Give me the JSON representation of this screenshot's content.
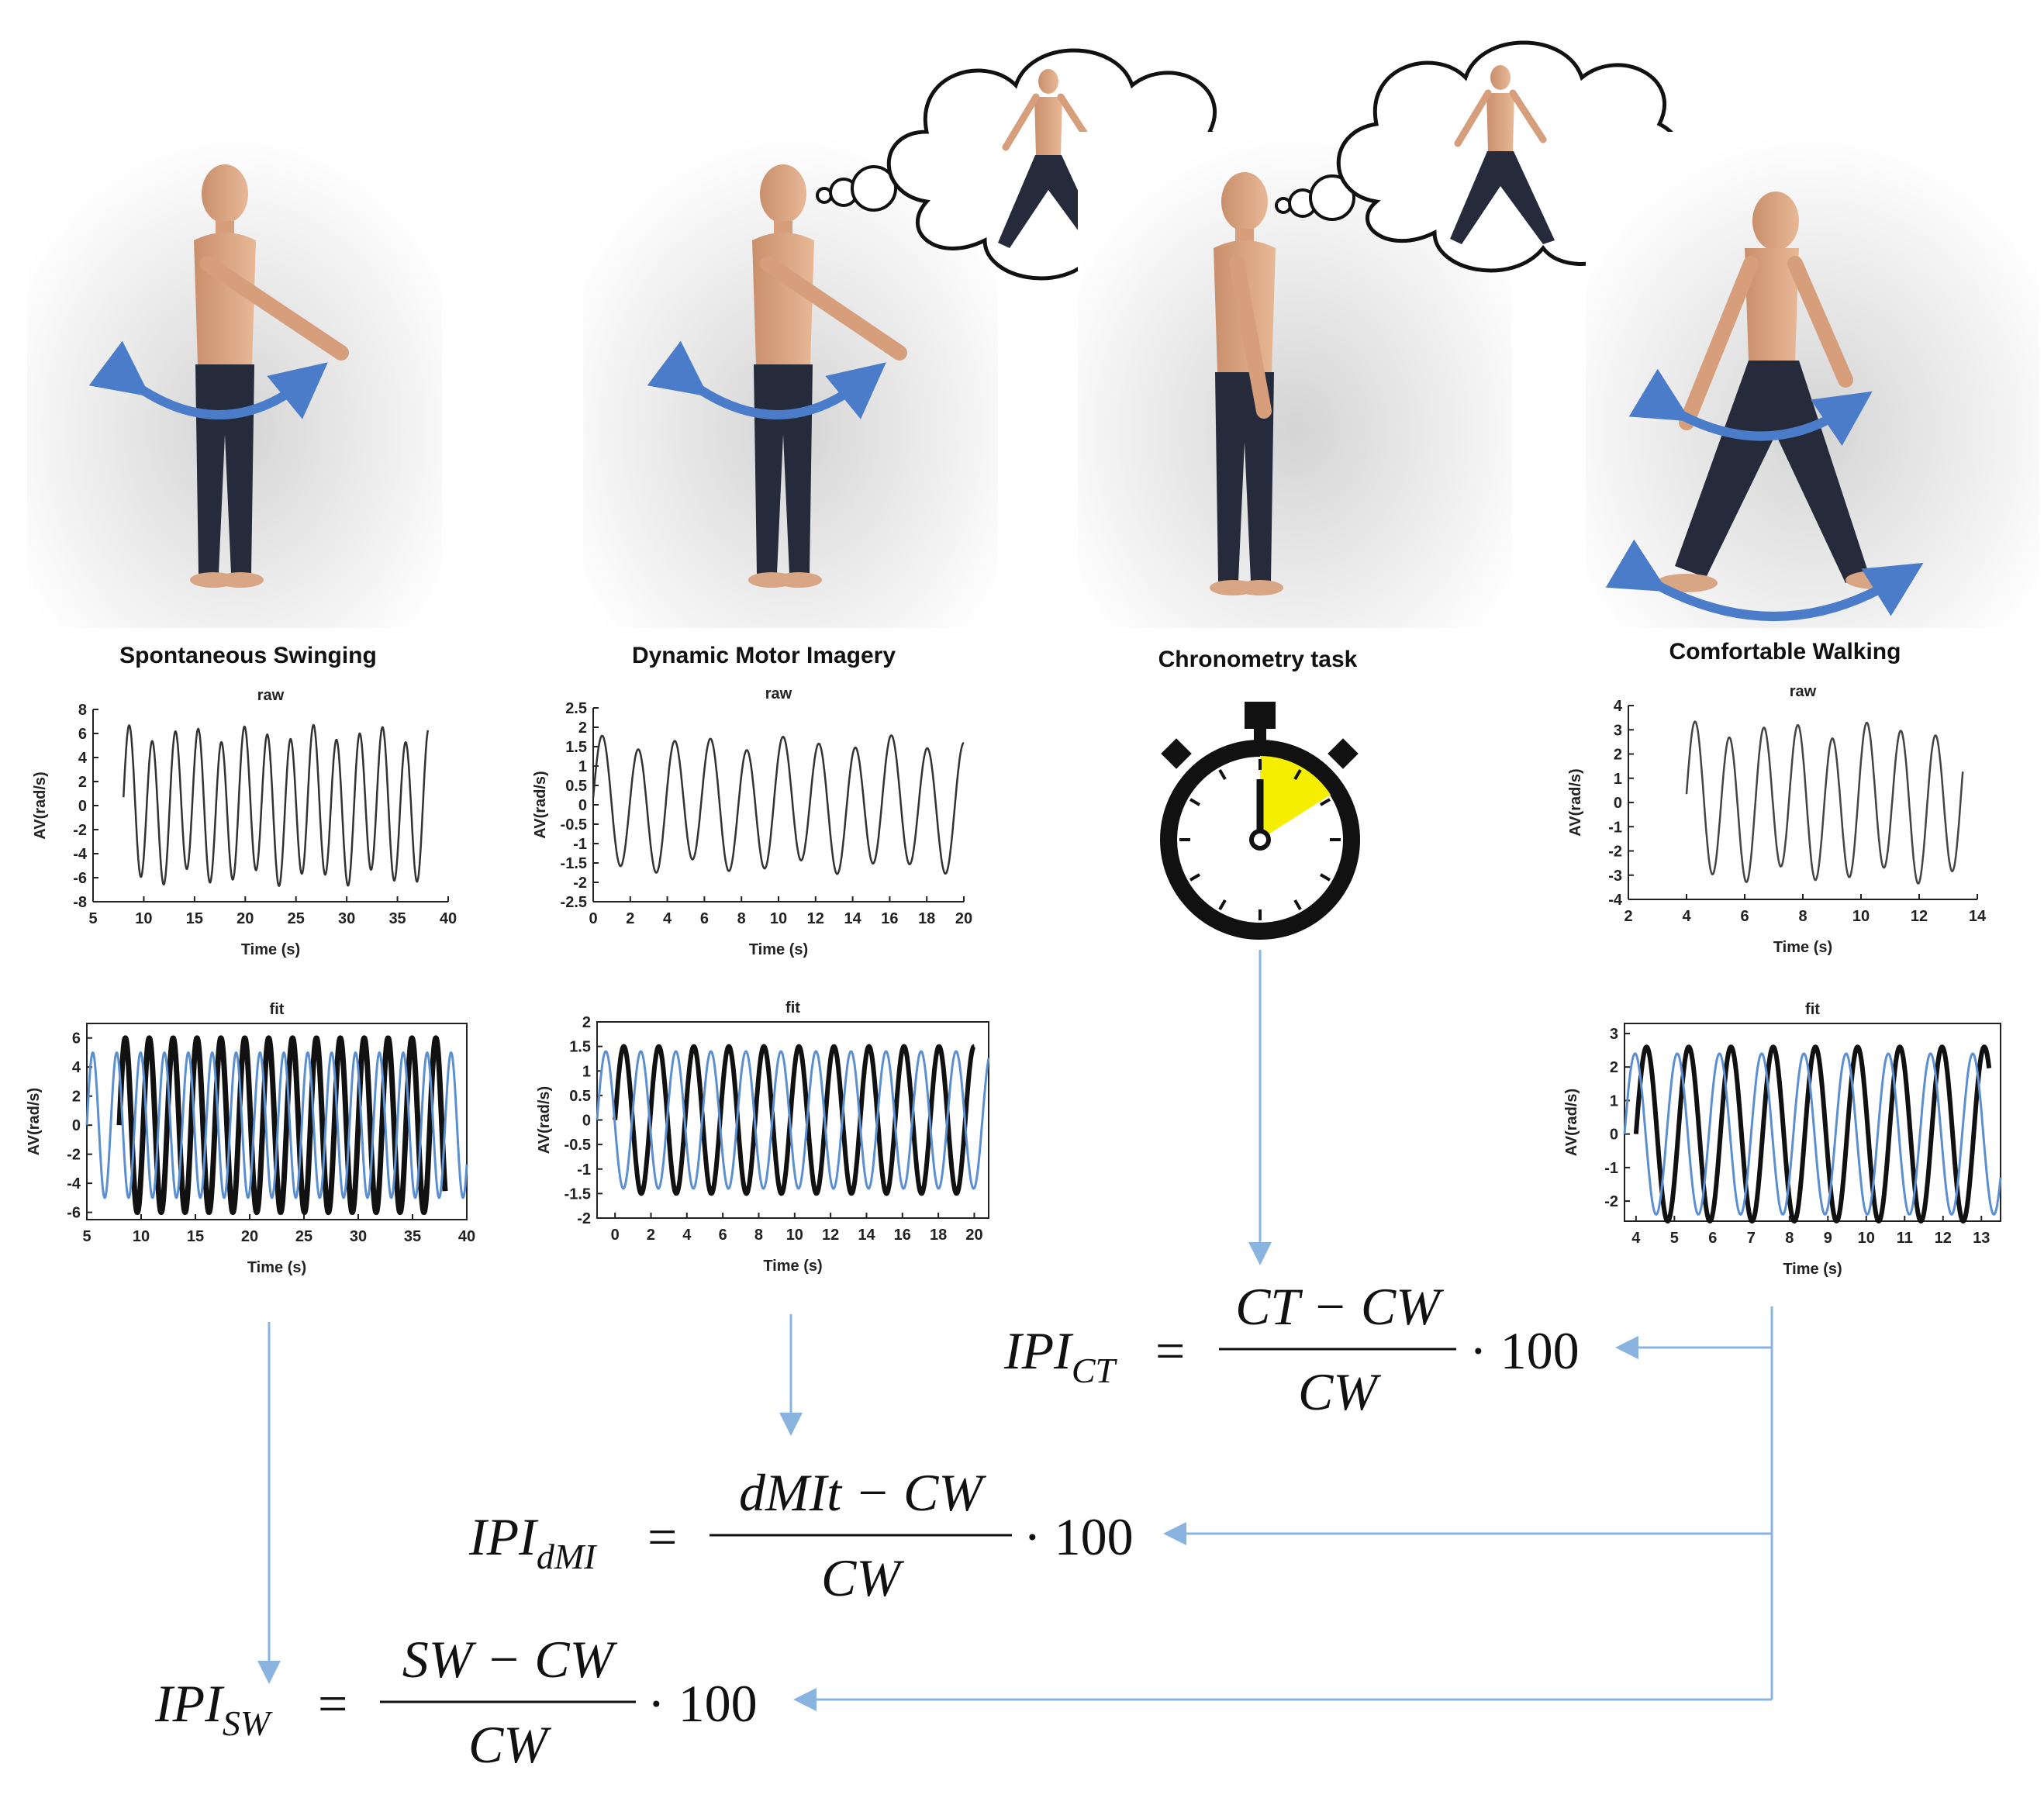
{
  "panels": [
    {
      "id": "sw",
      "title": "Spontaneous Swinging"
    },
    {
      "id": "dmi",
      "title": "Dynamic Motor Imagery"
    },
    {
      "id": "ct",
      "title": "Chronometry task"
    },
    {
      "id": "cw",
      "title": "Comfortable Walking"
    }
  ],
  "equations": {
    "ct": {
      "lhs": "IPI",
      "sub": "CT",
      "num": "CT − CW",
      "den": "CW",
      "factor": "· 100"
    },
    "dmi": {
      "lhs": "IPI",
      "sub": "dMI",
      "num": "dMIt − CW",
      "den": "CW",
      "factor": "· 100"
    },
    "sw": {
      "lhs": "IPI",
      "sub": "SW",
      "num": "SW − CW",
      "den": "CW",
      "factor": "· 100"
    }
  },
  "colors": {
    "arrow_blue": "#4a7cc9",
    "fit_blue": "#5b8fcf",
    "stopwatch_yellow": "#f5ee00",
    "connector": "#8ab4e0"
  },
  "chart_data": [
    {
      "id": "sw-raw",
      "type": "line",
      "title": "raw",
      "xlabel": "Time (s)",
      "ylabel": "AV(rad/s)",
      "xlim": [
        5,
        40
      ],
      "ylim": [
        -8,
        8
      ],
      "xticks": [
        5,
        10,
        15,
        20,
        25,
        30,
        35,
        40
      ],
      "yticks": [
        8,
        6,
        4,
        2,
        0,
        -2,
        -4,
        -6,
        -8
      ],
      "series": [
        {
          "amplitude": 6,
          "period": 2.27,
          "x_range": [
            8,
            38
          ]
        }
      ]
    },
    {
      "id": "sw-fit",
      "type": "line",
      "title": "fit",
      "xlabel": "Time (s)",
      "ylabel": "AV(rad/s)",
      "xlim": [
        5,
        40
      ],
      "ylim": [
        -6.5,
        7
      ],
      "xticks": [
        5,
        10,
        15,
        20,
        25,
        30,
        35,
        40
      ],
      "yticks": [
        6,
        4,
        2,
        0,
        -2,
        -4,
        -6
      ],
      "series": [
        {
          "amplitude": 6,
          "period": 2.2,
          "x_range": [
            8,
            38
          ]
        },
        {
          "amplitude": 5,
          "period": 2.2,
          "x_range": [
            5,
            40
          ]
        }
      ]
    },
    {
      "id": "dmi-raw",
      "type": "line",
      "title": "raw",
      "xlabel": "Time (s)",
      "ylabel": "AV(rad/s)",
      "xlim": [
        0,
        20
      ],
      "ylim": [
        -2.5,
        2.5
      ],
      "xticks": [
        0,
        2,
        4,
        6,
        8,
        10,
        12,
        14,
        16,
        18,
        20
      ],
      "yticks": [
        2.5,
        2,
        1.5,
        1,
        0.5,
        0,
        -0.5,
        -1,
        -1.5,
        -2,
        -2.5
      ],
      "series": [
        {
          "amplitude": 1.6,
          "period": 1.95,
          "x_range": [
            0,
            20
          ]
        }
      ]
    },
    {
      "id": "dmi-fit",
      "type": "line",
      "title": "fit",
      "xlabel": "Time (s)",
      "ylabel": "AV(rad/s)",
      "xlim": [
        -1,
        20.8
      ],
      "ylim": [
        -2,
        2
      ],
      "xticks": [
        0,
        2,
        4,
        6,
        8,
        10,
        12,
        14,
        16,
        18,
        20
      ],
      "yticks": [
        2,
        1.5,
        1,
        0.5,
        0,
        -0.5,
        -1,
        -1.5,
        -2
      ],
      "series": [
        {
          "amplitude": 1.5,
          "period": 1.95,
          "x_range": [
            0,
            20
          ]
        },
        {
          "amplitude": 1.4,
          "period": 1.95,
          "x_range": [
            -1,
            20.8
          ]
        }
      ]
    },
    {
      "id": "cw-raw",
      "type": "line",
      "title": "raw",
      "xlabel": "Time (s)",
      "ylabel": "AV(rad/s)",
      "xlim": [
        2,
        14
      ],
      "ylim": [
        -4,
        4
      ],
      "xticks": [
        2,
        4,
        6,
        8,
        10,
        12,
        14
      ],
      "yticks": [
        4,
        3,
        2,
        1,
        0,
        -1,
        -2,
        -3,
        -4
      ],
      "series": [
        {
          "amplitude": 3,
          "period": 1.18,
          "x_range": [
            4,
            13.5
          ]
        }
      ]
    },
    {
      "id": "cw-fit",
      "type": "line",
      "title": "fit",
      "xlabel": "Time (s)",
      "ylabel": "AV(rad/s)",
      "xlim": [
        3.7,
        13.5
      ],
      "ylim": [
        -2.6,
        3.3
      ],
      "xticks": [
        4,
        5,
        6,
        7,
        8,
        9,
        10,
        11,
        12,
        13
      ],
      "yticks": [
        3,
        2,
        1,
        0,
        -1,
        -2
      ],
      "series": [
        {
          "amplitude": 2.6,
          "period": 1.1,
          "x_range": [
            4,
            13.2
          ]
        },
        {
          "amplitude": 2.4,
          "period": 1.1,
          "x_range": [
            3.7,
            13.5
          ]
        }
      ]
    }
  ]
}
